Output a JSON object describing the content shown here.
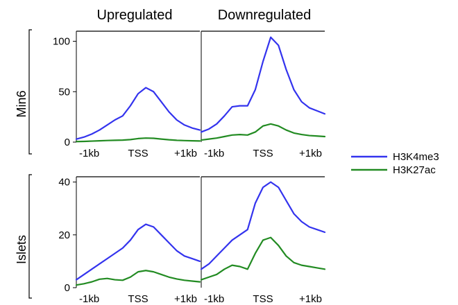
{
  "chart_data": {
    "type": "line",
    "column_titles": [
      "Upregulated",
      "Downregulated"
    ],
    "row_titles": [
      "Min6",
      "Islets"
    ],
    "x_tick_labels": [
      "-1kb",
      "TSS",
      "+1kb"
    ],
    "legend": {
      "position": "right",
      "entries": [
        {
          "name": "H3K4me3",
          "color": "#3333ee"
        },
        {
          "name": "H3K27ac",
          "color": "#228b22"
        }
      ]
    },
    "x": [
      -1,
      -0.875,
      -0.75,
      -0.625,
      -0.5,
      -0.375,
      -0.25,
      -0.125,
      0,
      0.125,
      0.25,
      0.375,
      0.5,
      0.625,
      0.75,
      0.875,
      1
    ],
    "panels": [
      {
        "row": "Min6",
        "column": "Upregulated",
        "ylim": [
          0,
          110
        ],
        "yticks": [
          0,
          50,
          100
        ],
        "series": [
          {
            "name": "H3K4me3",
            "values": [
              3,
              5,
              8,
              12,
              17,
              22,
              26,
              36,
              48,
              54,
              50,
              40,
              30,
              22,
              17,
              14,
              12
            ]
          },
          {
            "name": "H3K27ac",
            "values": [
              0.5,
              0.7,
              1,
              1.3,
              1.6,
              1.8,
              2,
              2.5,
              3.5,
              4,
              3.8,
              3,
              2.3,
              1.8,
              1.5,
              1.3,
              1.1
            ]
          }
        ]
      },
      {
        "row": "Min6",
        "column": "Downregulated",
        "ylim": [
          0,
          110
        ],
        "yticks": [
          0,
          50,
          100
        ],
        "series": [
          {
            "name": "H3K4me3",
            "values": [
              10,
              13,
              18,
              26,
              35,
              36,
              36,
              52,
              80,
              104,
              96,
              72,
              52,
              40,
              34,
              31,
              28
            ]
          },
          {
            "name": "H3K27ac",
            "values": [
              2,
              3,
              4,
              5.5,
              7,
              7.5,
              7,
              10,
              16,
              18,
              16,
              12,
              9,
              7.5,
              6.5,
              6,
              5.5
            ]
          }
        ]
      },
      {
        "row": "Islets",
        "column": "Upregulated",
        "ylim": [
          0,
          42
        ],
        "yticks": [
          0,
          20,
          40
        ],
        "series": [
          {
            "name": "H3K4me3",
            "values": [
              3,
              5,
              7,
              9,
              11,
              13,
              15,
              18,
              22,
              24,
              23,
              20,
              17,
              14,
              12,
              11,
              10
            ]
          },
          {
            "name": "H3K27ac",
            "values": [
              1,
              1.5,
              2.2,
              3.2,
              3.5,
              3,
              2.8,
              4,
              6,
              6.5,
              6,
              5,
              4,
              3.3,
              2.8,
              2.5,
              2.2
            ]
          }
        ]
      },
      {
        "row": "Islets",
        "column": "Downregulated",
        "ylim": [
          0,
          42
        ],
        "yticks": [
          0,
          20,
          40
        ],
        "series": [
          {
            "name": "H3K4me3",
            "values": [
              7,
              9,
              12,
              15,
              18,
              20,
              22,
              32,
              38,
              40,
              38,
              33,
              28,
              25,
              23,
              22,
              21
            ]
          },
          {
            "name": "H3K27ac",
            "values": [
              3,
              4,
              5,
              7,
              8.5,
              8,
              7,
              13,
              18,
              19,
              16,
              12,
              9.5,
              8.5,
              8,
              7.5,
              7
            ]
          }
        ]
      }
    ]
  }
}
